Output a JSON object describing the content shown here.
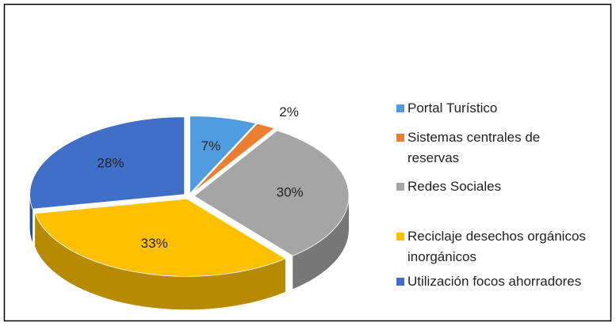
{
  "chart_data": {
    "type": "pie",
    "categories": [
      "Portal Turístico",
      "Sistemas centrales de reservas",
      "Redes Sociales",
      "Reciclaje desechos orgánicos inorgánicos",
      "Utilización focos ahorradores"
    ],
    "values": [
      7,
      2,
      30,
      33,
      28
    ],
    "value_labels": [
      "7%",
      "2%",
      "30%",
      "33%",
      "28%"
    ],
    "colors": [
      "#4f9de0",
      "#ed7d31",
      "#a5a5a5",
      "#ffc000",
      "#3f6fc6"
    ],
    "legend": "right"
  }
}
